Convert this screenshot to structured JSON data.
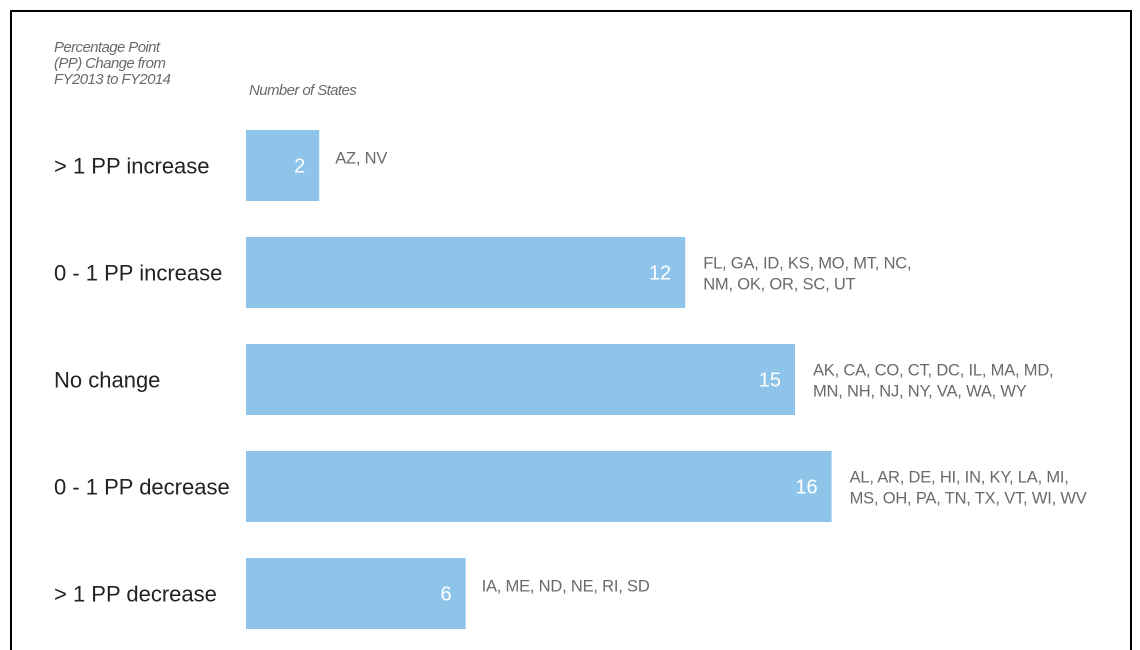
{
  "header": {
    "left_lines": [
      "Percentage Point",
      "(PP) Change from",
      "FY2013 to FY2014"
    ],
    "right": "Number of States"
  },
  "colors": {
    "bar": "#8EC4EA",
    "category_text": "#222222",
    "state_text": "#6a6a6a",
    "value_text": "#ffffff"
  },
  "chart_data": {
    "type": "bar",
    "orientation": "horizontal",
    "title": "",
    "xlabel": "Number of States",
    "ylabel": "Percentage Point (PP) Change from FY2013 to FY2014",
    "categories": [
      ">1 PP increase",
      "0 - 1 PP increase",
      "No change",
      "0 - 1 PP decrease",
      ">1 PP decrease"
    ],
    "category_labels": [
      "> 1 PP increase",
      "0 - 1 PP increase",
      "No change",
      "0 - 1 PP decrease",
      "> 1 PP decrease"
    ],
    "values": [
      2,
      12,
      15,
      16,
      6
    ],
    "xlim": [
      0,
      16
    ],
    "grid": false,
    "annotations": [
      [
        "AZ, NV"
      ],
      [
        "FL, GA, ID, KS, MO, MT, NC,",
        "NM, OK, OR, SC, UT"
      ],
      [
        "AK, CA, CO, CT, DC, IL, MA, MD,",
        "MN, NH, NJ, NY, VA, WA, WY"
      ],
      [
        "AL, AR, DE, HI, IN, KY, LA, MI,",
        "MS, OH, PA, TN, TX, VT, WI, WV"
      ],
      [
        "IA, ME, ND, NE, RI, SD"
      ]
    ]
  }
}
